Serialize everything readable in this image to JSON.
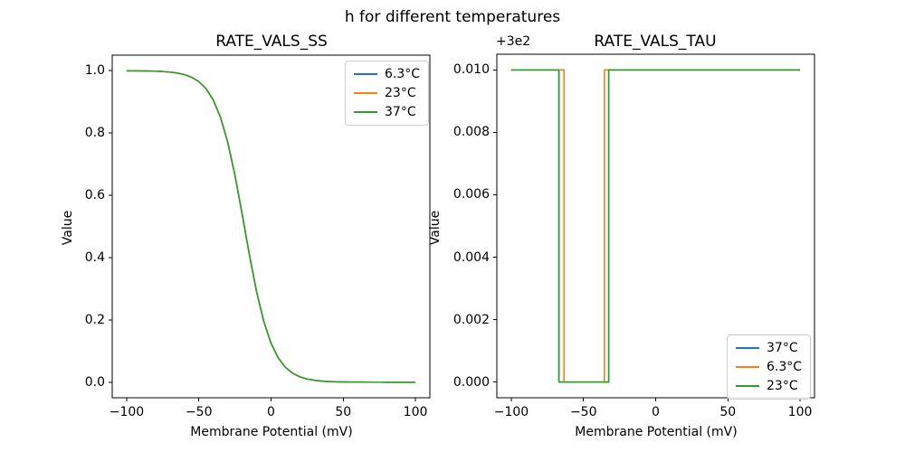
{
  "figure": {
    "title": "h for different temperatures",
    "background": "#ffffff"
  },
  "palette": {
    "blue": "#1f77b4",
    "orange": "#ff7f0e",
    "green": "#2ca02c"
  },
  "chart_data": [
    {
      "id": "ss",
      "type": "line",
      "title": "RATE_VALS_SS",
      "xlabel": "Membrane Potential (mV)",
      "ylabel": "Value",
      "grid": false,
      "xlim": [
        -110,
        110
      ],
      "ylim": [
        -0.05,
        1.05
      ],
      "xticks": [
        -100,
        -50,
        0,
        50,
        100
      ],
      "xtick_labels": [
        "−100",
        "−50",
        "0",
        "50",
        "100"
      ],
      "yticks": [
        0.0,
        0.2,
        0.4,
        0.6,
        0.8,
        1.0
      ],
      "ytick_labels": [
        "0.0",
        "0.2",
        "0.4",
        "0.6",
        "0.8",
        "1.0"
      ],
      "legend": {
        "position": "upper-right",
        "entries": [
          {
            "label": "6.3°C",
            "color": "#1f77b4"
          },
          {
            "label": "23°C",
            "color": "#ff7f0e"
          },
          {
            "label": "37°C",
            "color": "#2ca02c"
          }
        ]
      },
      "x": [
        -100,
        -95,
        -90,
        -85,
        -80,
        -75,
        -70,
        -65,
        -60,
        -55,
        -50,
        -45,
        -40,
        -35,
        -30,
        -25,
        -20,
        -15,
        -10,
        -5,
        0,
        5,
        10,
        15,
        20,
        25,
        30,
        35,
        40,
        45,
        50,
        55,
        60,
        65,
        70,
        75,
        80,
        85,
        90,
        95,
        100
      ],
      "series": [
        {
          "name": "6.3°C",
          "color": "#1f77b4",
          "values": [
            0.9998,
            0.9997,
            0.9995,
            0.9991,
            0.9985,
            0.9974,
            0.9956,
            0.9926,
            0.9875,
            0.979,
            0.965,
            0.9421,
            0.9058,
            0.8503,
            0.7704,
            0.6646,
            0.5394,
            0.409,
            0.2902,
            0.1945,
            0.1249,
            0.0777,
            0.0474,
            0.0286,
            0.0171,
            0.0102,
            0.006,
            0.0036,
            0.0021,
            0.0012,
            0.0007,
            0.0004,
            0.0003,
            0.0002,
            0.0001,
            0.0001,
            0.0,
            0.0,
            0.0,
            0.0,
            0.0
          ]
        },
        {
          "name": "23°C",
          "color": "#ff7f0e",
          "values": [
            0.9998,
            0.9997,
            0.9995,
            0.9991,
            0.9985,
            0.9974,
            0.9956,
            0.9926,
            0.9875,
            0.979,
            0.965,
            0.9421,
            0.9058,
            0.8503,
            0.7704,
            0.6646,
            0.5394,
            0.409,
            0.2902,
            0.1945,
            0.1249,
            0.0777,
            0.0474,
            0.0286,
            0.0171,
            0.0102,
            0.006,
            0.0036,
            0.0021,
            0.0012,
            0.0007,
            0.0004,
            0.0003,
            0.0002,
            0.0001,
            0.0001,
            0.0,
            0.0,
            0.0,
            0.0,
            0.0
          ]
        },
        {
          "name": "37°C",
          "color": "#2ca02c",
          "values": [
            0.9998,
            0.9997,
            0.9995,
            0.9991,
            0.9985,
            0.9974,
            0.9956,
            0.9926,
            0.9875,
            0.979,
            0.965,
            0.9421,
            0.9058,
            0.8503,
            0.7704,
            0.6646,
            0.5394,
            0.409,
            0.2902,
            0.1945,
            0.1249,
            0.0777,
            0.0474,
            0.0286,
            0.0171,
            0.0102,
            0.006,
            0.0036,
            0.0021,
            0.0012,
            0.0007,
            0.0004,
            0.0003,
            0.0002,
            0.0001,
            0.0001,
            0.0,
            0.0,
            0.0,
            0.0,
            0.0
          ]
        }
      ]
    },
    {
      "id": "tau",
      "type": "line",
      "title": "RATE_VALS_TAU",
      "offset_text": "+3e2",
      "y_offset": 300,
      "xlabel": "Membrane Potential (mV)",
      "ylabel": "Value",
      "grid": false,
      "xlim": [
        -110,
        110
      ],
      "ylim": [
        -0.0005,
        0.0105
      ],
      "xticks": [
        -100,
        -50,
        0,
        50,
        100
      ],
      "xtick_labels": [
        "−100",
        "−50",
        "0",
        "50",
        "100"
      ],
      "yticks": [
        0.0,
        0.002,
        0.004,
        0.006,
        0.008,
        0.01
      ],
      "ytick_labels": [
        "0.000",
        "0.002",
        "0.004",
        "0.006",
        "0.008",
        "0.010"
      ],
      "legend": {
        "position": "lower-right",
        "entries": [
          {
            "label": "37°C",
            "color": "#1f77b4"
          },
          {
            "label": "6.3°C",
            "color": "#ff7f0e"
          },
          {
            "label": "23°C",
            "color": "#2ca02c"
          }
        ]
      },
      "series": [
        {
          "name": "37°C",
          "color": "#1f77b4",
          "x": [
            -100,
            -67,
            -67,
            -32.5,
            -32.5,
            100
          ],
          "values": [
            300.01,
            300.01,
            300.0,
            300.0,
            300.01,
            300.01
          ]
        },
        {
          "name": "6.3°C",
          "color": "#ff7f0e",
          "x": [
            -100,
            -63.5,
            -63.5,
            -35.5,
            -35.5,
            100
          ],
          "values": [
            300.01,
            300.01,
            300.0,
            300.0,
            300.01,
            300.01
          ]
        },
        {
          "name": "23°C",
          "color": "#2ca02c",
          "x": [
            -100,
            -67,
            -67,
            -32.5,
            -32.5,
            100
          ],
          "values": [
            300.01,
            300.01,
            300.0,
            300.0,
            300.01,
            300.01
          ]
        }
      ]
    }
  ]
}
